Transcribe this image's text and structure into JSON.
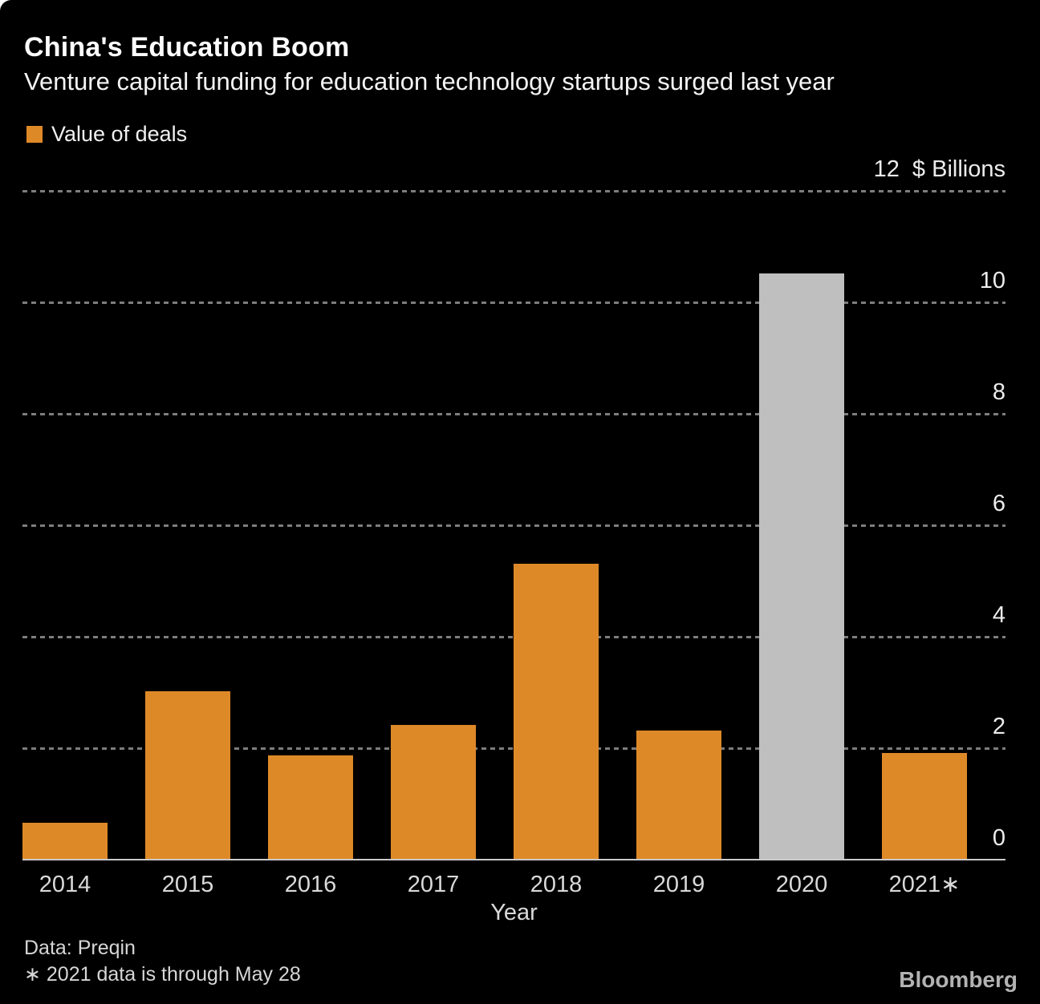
{
  "chart": {
    "title": "China's Education Boom",
    "subtitle": "Venture capital funding for education technology startups surged last year",
    "legend_label": "Value of deals",
    "legend_color": "#de8927",
    "footer_source": "Data: Preqin",
    "footer_note": "∗ 2021 data is through May 28",
    "brand": "Bloomberg"
  },
  "chart_data": {
    "type": "bar",
    "title": "China's Education Boom",
    "subtitle": "Venture capital funding for education technology startups surged last year",
    "categories": [
      "2014",
      "2015",
      "2016",
      "2017",
      "2018",
      "2019",
      "2020",
      "2021∗"
    ],
    "series": [
      {
        "name": "Value of deals",
        "values": [
          0.65,
          3.0,
          1.85,
          2.4,
          5.3,
          2.3,
          10.5,
          1.9
        ]
      }
    ],
    "bar_colors": [
      "#de8927",
      "#de8927",
      "#de8927",
      "#de8927",
      "#de8927",
      "#de8927",
      "#bfbfbf",
      "#de8927"
    ],
    "highlighted_category": "2020",
    "xlabel": "Year",
    "ylabel": "$ Billions",
    "ylim": [
      0,
      12
    ],
    "yticks": [
      {
        "value": 0,
        "label": "0"
      },
      {
        "value": 2,
        "label": "2"
      },
      {
        "value": 4,
        "label": "4"
      },
      {
        "value": 6,
        "label": "6"
      },
      {
        "value": 8,
        "label": "8"
      },
      {
        "value": 10,
        "label": "10"
      },
      {
        "value": 12,
        "label": "12  $ Billions"
      }
    ],
    "grid": "dashed-horizontal",
    "legend_position": "top-left",
    "grid_color": "#7d7d7d",
    "axis_line_color": "#c9c9c9",
    "source": "Data: Preqin",
    "note": "∗ 2021 data is through May 28"
  }
}
